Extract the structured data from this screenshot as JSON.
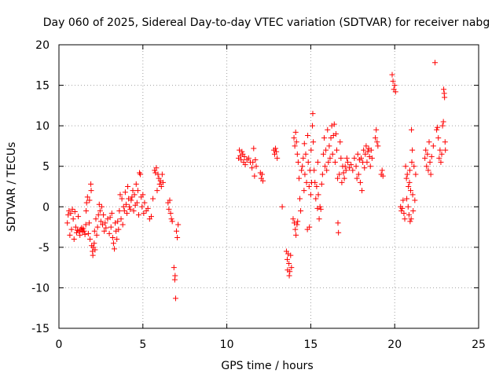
{
  "chart_data": {
    "type": "scatter",
    "title": "Day 060 of 2025, Sidereal Day-to-day VTEC variation (SDTVAR) for receiver nabg",
    "xlabel": "GPS time / hours",
    "ylabel": "SDTVAR / TECUs",
    "xlim": [
      0,
      25
    ],
    "ylim": [
      -15,
      20
    ],
    "xticks": [
      0,
      5,
      10,
      15,
      20,
      25
    ],
    "yticks": [
      -15,
      -10,
      -5,
      0,
      5,
      10,
      15,
      20
    ],
    "grid": true,
    "marker": "+",
    "color": "#ff0000",
    "points": [
      [
        0.5,
        -2.0
      ],
      [
        0.55,
        -1.0
      ],
      [
        0.6,
        -0.5
      ],
      [
        0.65,
        -3.5
      ],
      [
        0.7,
        -0.8
      ],
      [
        0.75,
        -2.8
      ],
      [
        0.8,
        -0.3
      ],
      [
        0.85,
        -1.5
      ],
      [
        0.9,
        -4.0
      ],
      [
        0.95,
        -0.6
      ],
      [
        1.0,
        -2.5
      ],
      [
        1.05,
        -3.2
      ],
      [
        1.1,
        -2.9
      ],
      [
        1.15,
        -1.2
      ],
      [
        1.2,
        -3.0
      ],
      [
        1.25,
        -3.5
      ],
      [
        1.3,
        -2.8
      ],
      [
        1.35,
        -2.6
      ],
      [
        1.4,
        -3.1
      ],
      [
        1.45,
        -2.7
      ],
      [
        1.5,
        -3.0
      ],
      [
        1.55,
        -3.4
      ],
      [
        1.6,
        -2.2
      ],
      [
        1.62,
        -0.5
      ],
      [
        1.65,
        0.5
      ],
      [
        1.7,
        1.2
      ],
      [
        1.75,
        -3.3
      ],
      [
        1.8,
        -2.0
      ],
      [
        1.82,
        0.8
      ],
      [
        1.85,
        -4.0
      ],
      [
        1.9,
        2.8
      ],
      [
        1.92,
        2.0
      ],
      [
        1.95,
        -4.8
      ],
      [
        2.0,
        -5.5
      ],
      [
        2.02,
        -6.0
      ],
      [
        2.05,
        -5.0
      ],
      [
        2.1,
        -4.5
      ],
      [
        2.12,
        -3.0
      ],
      [
        2.15,
        -5.3
      ],
      [
        2.2,
        -1.5
      ],
      [
        2.25,
        -3.5
      ],
      [
        2.3,
        -2.5
      ],
      [
        2.35,
        -1.0
      ],
      [
        2.4,
        0.3
      ],
      [
        2.45,
        -0.5
      ],
      [
        2.5,
        -1.8
      ],
      [
        2.55,
        0.0
      ],
      [
        2.6,
        -2.2
      ],
      [
        2.65,
        -1.0
      ],
      [
        2.7,
        -3.0
      ],
      [
        2.75,
        -2.0
      ],
      [
        2.8,
        -2.6
      ],
      [
        2.9,
        -1.5
      ],
      [
        3.0,
        -3.3
      ],
      [
        3.05,
        -1.3
      ],
      [
        3.1,
        -2.5
      ],
      [
        3.15,
        -0.8
      ],
      [
        3.2,
        -3.8
      ],
      [
        3.25,
        -4.5
      ],
      [
        3.3,
        -5.2
      ],
      [
        3.35,
        -2.0
      ],
      [
        3.4,
        -3.0
      ],
      [
        3.45,
        -4.0
      ],
      [
        3.5,
        -1.8
      ],
      [
        3.55,
        -2.8
      ],
      [
        3.6,
        -0.5
      ],
      [
        3.65,
        1.5
      ],
      [
        3.7,
        -1.5
      ],
      [
        3.75,
        1.0
      ],
      [
        3.8,
        -2.2
      ],
      [
        3.85,
        0.0
      ],
      [
        3.9,
        -0.5
      ],
      [
        3.95,
        1.8
      ],
      [
        4.0,
        0.3
      ],
      [
        4.05,
        -0.8
      ],
      [
        4.1,
        2.5
      ],
      [
        4.15,
        1.0
      ],
      [
        4.2,
        0.0
      ],
      [
        4.25,
        -0.3
      ],
      [
        4.3,
        0.8
      ],
      [
        4.35,
        1.2
      ],
      [
        4.4,
        2.0
      ],
      [
        4.45,
        -0.5
      ],
      [
        4.5,
        1.5
      ],
      [
        4.55,
        0.2
      ],
      [
        4.6,
        2.8
      ],
      [
        4.65,
        0.5
      ],
      [
        4.7,
        2.0
      ],
      [
        4.75,
        -1.0
      ],
      [
        4.8,
        4.2
      ],
      [
        4.85,
        4.0
      ],
      [
        4.9,
        1.2
      ],
      [
        4.95,
        0.0
      ],
      [
        5.0,
        1.5
      ],
      [
        5.05,
        -0.8
      ],
      [
        5.1,
        0.5
      ],
      [
        5.2,
        -0.5
      ],
      [
        5.3,
        -0.2
      ],
      [
        5.4,
        -1.5
      ],
      [
        5.5,
        -1.2
      ],
      [
        5.6,
        1.0
      ],
      [
        5.7,
        4.5
      ],
      [
        5.75,
        4.2
      ],
      [
        5.8,
        4.8
      ],
      [
        5.85,
        2.0
      ],
      [
        5.9,
        4.0
      ],
      [
        5.95,
        3.5
      ],
      [
        6.0,
        2.8
      ],
      [
        6.05,
        3.2
      ],
      [
        6.1,
        2.5
      ],
      [
        6.15,
        4.0
      ],
      [
        6.2,
        3.0
      ],
      [
        6.5,
        0.5
      ],
      [
        6.55,
        -0.3
      ],
      [
        6.6,
        0.8
      ],
      [
        6.65,
        -0.8
      ],
      [
        6.7,
        -1.5
      ],
      [
        6.75,
        -1.8
      ],
      [
        6.85,
        -7.5
      ],
      [
        6.9,
        -9.0
      ],
      [
        6.92,
        -8.5
      ],
      [
        6.95,
        -11.3
      ],
      [
        7.0,
        -3.0
      ],
      [
        7.05,
        -3.8
      ],
      [
        7.1,
        -2.2
      ],
      [
        10.7,
        6.0
      ],
      [
        10.75,
        7.0
      ],
      [
        10.8,
        6.3
      ],
      [
        10.85,
        5.8
      ],
      [
        10.9,
        6.8
      ],
      [
        10.95,
        6.5
      ],
      [
        11.0,
        5.5
      ],
      [
        11.05,
        6.2
      ],
      [
        11.1,
        5.2
      ],
      [
        11.2,
        5.8
      ],
      [
        11.3,
        6.0
      ],
      [
        11.4,
        5.5
      ],
      [
        11.5,
        4.8
      ],
      [
        11.55,
        5.5
      ],
      [
        11.6,
        7.2
      ],
      [
        11.65,
        3.8
      ],
      [
        11.7,
        5.8
      ],
      [
        11.75,
        5.0
      ],
      [
        12.0,
        4.2
      ],
      [
        12.05,
        3.5
      ],
      [
        12.1,
        4.0
      ],
      [
        12.15,
        3.2
      ],
      [
        12.8,
        7.0
      ],
      [
        12.85,
        6.5
      ],
      [
        12.9,
        7.2
      ],
      [
        12.95,
        6.8
      ],
      [
        13.0,
        6.0
      ],
      [
        13.3,
        0.0
      ],
      [
        13.55,
        -5.5
      ],
      [
        13.6,
        -6.5
      ],
      [
        13.62,
        -7.8
      ],
      [
        13.65,
        -5.8
      ],
      [
        13.7,
        -7.0
      ],
      [
        13.72,
        -8.5
      ],
      [
        13.75,
        -8.0
      ],
      [
        13.8,
        -6.0
      ],
      [
        13.85,
        -7.5
      ],
      [
        13.95,
        -1.5
      ],
      [
        14.0,
        8.5
      ],
      [
        14.02,
        -2.0
      ],
      [
        14.05,
        7.5
      ],
      [
        14.08,
        -2.8
      ],
      [
        14.1,
        9.2
      ],
      [
        14.12,
        -3.5
      ],
      [
        14.15,
        8.0
      ],
      [
        14.18,
        -2.2
      ],
      [
        14.2,
        6.5
      ],
      [
        14.22,
        -1.8
      ],
      [
        14.25,
        5.5
      ],
      [
        14.3,
        3.5
      ],
      [
        14.35,
        1.0
      ],
      [
        14.4,
        -0.5
      ],
      [
        14.45,
        4.5
      ],
      [
        14.5,
        5.0
      ],
      [
        14.55,
        6.0
      ],
      [
        14.6,
        2.0
      ],
      [
        14.62,
        7.8
      ],
      [
        14.65,
        4.0
      ],
      [
        14.7,
        6.5
      ],
      [
        14.75,
        3.0
      ],
      [
        14.8,
        -2.8
      ],
      [
        14.82,
        8.8
      ],
      [
        14.85,
        5.5
      ],
      [
        14.9,
        2.5
      ],
      [
        14.92,
        -2.5
      ],
      [
        14.95,
        4.5
      ],
      [
        15.0,
        1.5
      ],
      [
        15.02,
        7.0
      ],
      [
        15.05,
        3.0
      ],
      [
        15.1,
        10.0
      ],
      [
        15.12,
        11.5
      ],
      [
        15.15,
        8.0
      ],
      [
        15.2,
        4.5
      ],
      [
        15.25,
        3.0
      ],
      [
        15.3,
        1.0
      ],
      [
        15.35,
        2.5
      ],
      [
        15.4,
        -0.2
      ],
      [
        15.42,
        5.5
      ],
      [
        15.45,
        1.5
      ],
      [
        15.5,
        -1.5
      ],
      [
        15.55,
        0.0
      ],
      [
        15.6,
        -0.3
      ],
      [
        15.65,
        2.8
      ],
      [
        15.7,
        4.0
      ],
      [
        15.75,
        6.5
      ],
      [
        15.8,
        8.5
      ],
      [
        15.85,
        5.0
      ],
      [
        15.9,
        7.0
      ],
      [
        15.95,
        4.5
      ],
      [
        16.0,
        9.5
      ],
      [
        16.05,
        5.5
      ],
      [
        16.1,
        7.5
      ],
      [
        16.15,
        6.0
      ],
      [
        16.2,
        8.5
      ],
      [
        16.25,
        10.0
      ],
      [
        16.3,
        6.5
      ],
      [
        16.35,
        8.8
      ],
      [
        16.4,
        10.2
      ],
      [
        16.45,
        5.5
      ],
      [
        16.5,
        9.0
      ],
      [
        16.55,
        7.0
      ],
      [
        16.6,
        3.5
      ],
      [
        16.62,
        -2.0
      ],
      [
        16.65,
        -3.2
      ],
      [
        16.7,
        4.0
      ],
      [
        16.75,
        8.0
      ],
      [
        16.8,
        6.0
      ],
      [
        16.85,
        3.0
      ],
      [
        16.9,
        5.0
      ],
      [
        16.95,
        4.2
      ],
      [
        17.0,
        3.5
      ],
      [
        17.05,
        5.0
      ],
      [
        17.1,
        4.5
      ],
      [
        17.15,
        6.0
      ],
      [
        17.2,
        5.5
      ],
      [
        17.3,
        4.8
      ],
      [
        17.4,
        5.2
      ],
      [
        17.5,
        4.5
      ],
      [
        17.6,
        6.0
      ],
      [
        17.7,
        5.0
      ],
      [
        17.75,
        3.5
      ],
      [
        17.8,
        6.5
      ],
      [
        17.85,
        4.0
      ],
      [
        17.9,
        5.8
      ],
      [
        17.95,
        3.0
      ],
      [
        18.0,
        6.0
      ],
      [
        18.05,
        2.0
      ],
      [
        18.1,
        5.5
      ],
      [
        18.15,
        7.0
      ],
      [
        18.2,
        4.8
      ],
      [
        18.25,
        6.5
      ],
      [
        18.3,
        7.5
      ],
      [
        18.35,
        5.5
      ],
      [
        18.4,
        6.8
      ],
      [
        18.45,
        7.2
      ],
      [
        18.5,
        6.2
      ],
      [
        18.55,
        5.0
      ],
      [
        18.6,
        7.0
      ],
      [
        18.65,
        6.0
      ],
      [
        18.85,
        8.5
      ],
      [
        18.9,
        9.5
      ],
      [
        18.95,
        8.0
      ],
      [
        19.0,
        7.5
      ],
      [
        19.2,
        4.0
      ],
      [
        19.25,
        4.5
      ],
      [
        19.3,
        3.8
      ],
      [
        19.85,
        16.3
      ],
      [
        19.9,
        15.5
      ],
      [
        19.95,
        14.5
      ],
      [
        20.0,
        15.0
      ],
      [
        20.05,
        14.2
      ],
      [
        20.35,
        0.0
      ],
      [
        20.4,
        -0.5
      ],
      [
        20.45,
        -0.2
      ],
      [
        20.5,
        0.8
      ],
      [
        20.55,
        -0.8
      ],
      [
        20.6,
        -1.5
      ],
      [
        20.65,
        5.0
      ],
      [
        20.7,
        3.5
      ],
      [
        20.72,
        1.0
      ],
      [
        20.75,
        4.0
      ],
      [
        20.8,
        0.0
      ],
      [
        20.82,
        2.5
      ],
      [
        20.85,
        -1.0
      ],
      [
        20.88,
        3.0
      ],
      [
        20.9,
        4.5
      ],
      [
        20.92,
        -1.8
      ],
      [
        20.95,
        2.0
      ],
      [
        20.98,
        -1.5
      ],
      [
        21.0,
        9.5
      ],
      [
        21.02,
        5.5
      ],
      [
        21.05,
        7.0
      ],
      [
        21.07,
        1.5
      ],
      [
        21.1,
        -0.5
      ],
      [
        21.15,
        5.0
      ],
      [
        21.2,
        0.8
      ],
      [
        21.25,
        4.0
      ],
      [
        21.8,
        6.0
      ],
      [
        21.85,
        7.0
      ],
      [
        21.9,
        5.0
      ],
      [
        21.95,
        6.5
      ],
      [
        22.0,
        4.5
      ],
      [
        22.05,
        8.0
      ],
      [
        22.1,
        5.5
      ],
      [
        22.15,
        4.0
      ],
      [
        22.2,
        6.2
      ],
      [
        22.3,
        7.5
      ],
      [
        22.4,
        17.8
      ],
      [
        22.5,
        9.5
      ],
      [
        22.55,
        9.8
      ],
      [
        22.6,
        8.5
      ],
      [
        22.65,
        6.0
      ],
      [
        22.7,
        7.0
      ],
      [
        22.75,
        5.5
      ],
      [
        22.8,
        6.5
      ],
      [
        22.85,
        10.0
      ],
      [
        22.9,
        10.5
      ],
      [
        22.92,
        14.5
      ],
      [
        22.95,
        14.0
      ],
      [
        22.97,
        13.5
      ],
      [
        23.0,
        8.0
      ],
      [
        23.02,
        7.0
      ]
    ]
  }
}
